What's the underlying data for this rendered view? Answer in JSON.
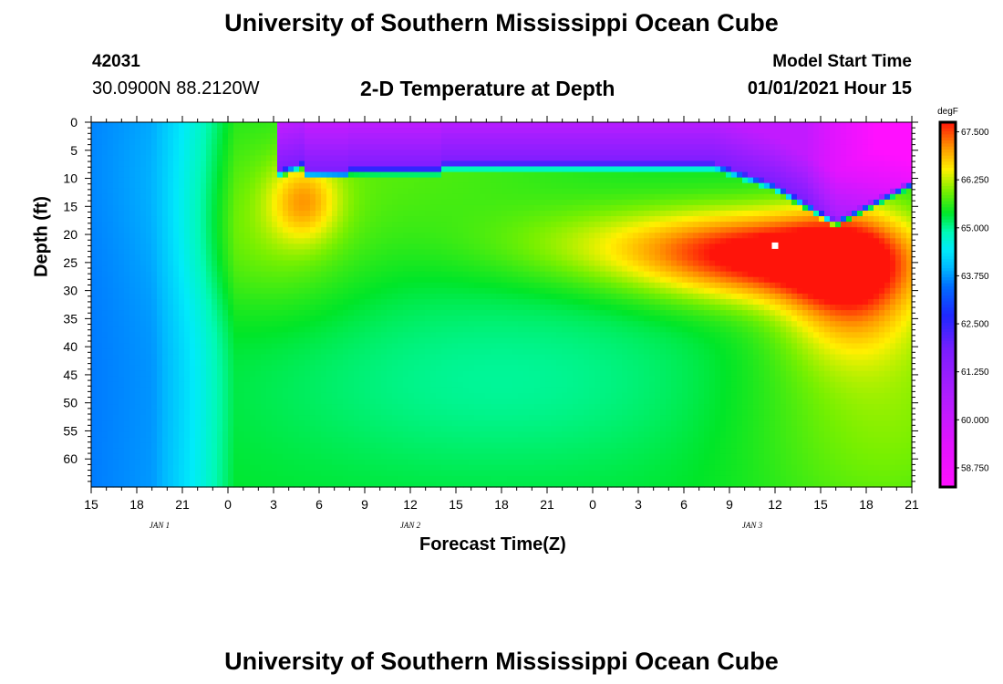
{
  "page": {
    "top_title": "University of Southern Mississippi Ocean Cube",
    "bottom_title": "University of Southern Mississippi Ocean Cube",
    "station_id": "42031",
    "station_coords": "30.0900N 88.2120W",
    "plot_title": "2-D Temperature at Depth",
    "model_label": "Model Start Time",
    "model_time": "01/01/2021 Hour 15"
  },
  "chart_data": {
    "type": "heatmap",
    "title": "2-D Temperature at Depth",
    "xlabel": "Forecast Time(Z)",
    "ylabel": "Depth (ft)",
    "x_tick_labels": [
      "15",
      "18",
      "21",
      "0",
      "3",
      "6",
      "9",
      "12",
      "15",
      "18",
      "21",
      "0",
      "3",
      "6",
      "9",
      "12",
      "15",
      "18",
      "21"
    ],
    "x_range_hours": [
      0,
      54
    ],
    "date_labels": [
      {
        "text": "JAN 1",
        "hour": 4.5
      },
      {
        "text": "JAN 2",
        "hour": 21
      },
      {
        "text": "JAN 3",
        "hour": 43.5
      }
    ],
    "y_ticks": [
      0,
      5,
      10,
      15,
      20,
      25,
      30,
      35,
      40,
      45,
      50,
      55,
      60
    ],
    "ylim": [
      0,
      65
    ],
    "y_inverted": true,
    "colorbar": {
      "unit": "degF",
      "labels": [
        "67.500",
        "66.250",
        "65.000",
        "63.750",
        "62.500",
        "61.250",
        "60.000",
        "58.750"
      ],
      "range": [
        58.25,
        67.75
      ]
    },
    "colors": {
      "max": "#ff1a0a",
      "min": "#ff10ff",
      "mid": "#00e0ff"
    },
    "marker": {
      "hour": 45,
      "depth": 22
    }
  }
}
